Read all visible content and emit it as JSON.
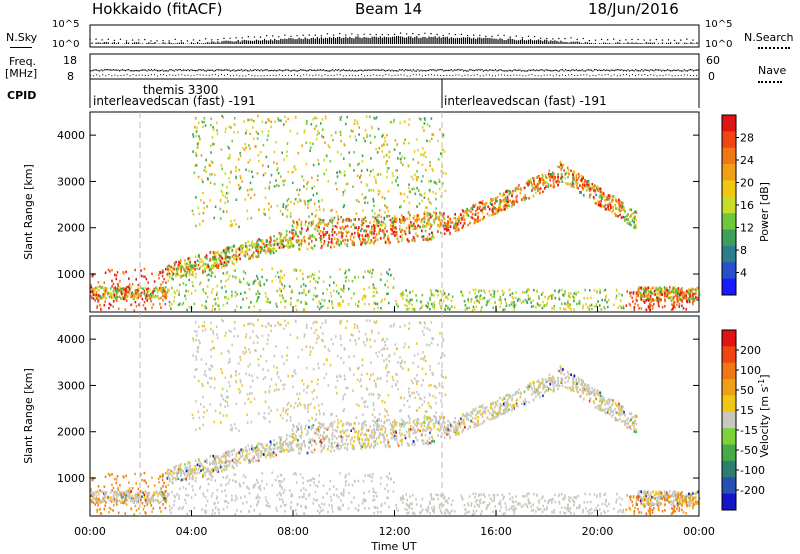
{
  "header": {
    "station": "Hokkaido (fitACF)",
    "beam": "Beam 14",
    "date": "18/Jun/2016"
  },
  "status_panels": {
    "nsky_label": "N.Sky",
    "nsearch_label": "N.Search",
    "nsky_ticks": [
      "10^5",
      "10^0"
    ],
    "nsearch_ticks": [
      "10^5",
      "10^0"
    ],
    "freq_label_line1": "Freq.",
    "freq_label_line2": "[MHz]",
    "freq_ticks": [
      "18",
      "8"
    ],
    "nave_label": "Nave",
    "nave_ticks": [
      "60",
      "0"
    ],
    "cpid_label": "CPID",
    "cpid_entries": [
      {
        "time": 1.85,
        "text": "themis 3300",
        "row": "top"
      },
      {
        "time": 0.0,
        "text": "interleavedscan (fast) -191",
        "row": "bottom"
      },
      {
        "time": 14.0,
        "text": "interleavedscan (fast) -191",
        "row": "bottom"
      }
    ]
  },
  "chart_data": [
    {
      "type": "heatmap",
      "title": "",
      "xlabel": "",
      "ylabel": "Slant Range [km]",
      "xlim": [
        0,
        24
      ],
      "ylim": [
        180,
        4500
      ],
      "y_ticks": [
        1000,
        2000,
        3000,
        4000
      ],
      "colorbar": {
        "label": "Power [dB]",
        "ticks": [
          4,
          8,
          12,
          16,
          20,
          24,
          28
        ],
        "range": [
          0,
          32
        ],
        "colors": [
          "#1a1aff",
          "#2850c8",
          "#2e7d8c",
          "#3ca05a",
          "#6ec83c",
          "#c8dc28",
          "#f0c814",
          "#f0a014",
          "#f07814",
          "#f04614",
          "#e01414"
        ]
      }
    },
    {
      "type": "heatmap",
      "title": "",
      "xlabel": "Time UT",
      "ylabel": "Slant Range [km]",
      "xlim": [
        0,
        24
      ],
      "ylim": [
        180,
        4500
      ],
      "y_ticks": [
        1000,
        2000,
        3000,
        4000
      ],
      "x_ticks": [
        "00:00",
        "04:00",
        "08:00",
        "12:00",
        "16:00",
        "20:00",
        "00:00"
      ],
      "colorbar": {
        "label": "Velocity [m s^-1]",
        "ticks": [
          "200",
          "100",
          "50",
          "15",
          "-15",
          "-50",
          "-100",
          "-200"
        ],
        "colors": [
          "#1414c8",
          "#2850b4",
          "#2e7d6e",
          "#46aa46",
          "#7dd23c",
          "#c8c8c0",
          "#f0c814",
          "#f0a014",
          "#f07814",
          "#f04614",
          "#e01414"
        ]
      }
    }
  ]
}
